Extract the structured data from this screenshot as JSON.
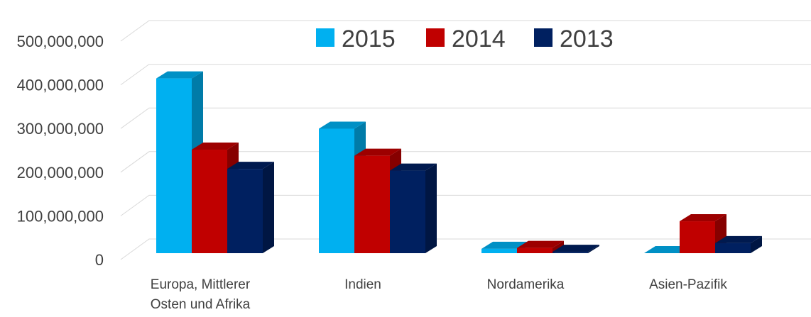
{
  "chart_data": {
    "type": "bar",
    "categories": [
      [
        "Europa, Mittlerer",
        "Osten und Afrika"
      ],
      [
        "Indien"
      ],
      [
        "Nordamerika"
      ],
      [
        "Asien-Pazifik"
      ]
    ],
    "series": [
      {
        "name": "2015",
        "color": "#00B0F0",
        "values": [
          400000000,
          285000000,
          10000000,
          0
        ]
      },
      {
        "name": "2014",
        "color": "#C00000",
        "values": [
          237000000,
          223000000,
          12000000,
          73000000
        ]
      },
      {
        "name": "2013",
        "color": "#002060",
        "values": [
          193000000,
          189000000,
          3000000,
          23000000
        ]
      }
    ],
    "y_ticks": [
      "0",
      "100,000,000",
      "200,000,000",
      "300,000,000",
      "400,000,000",
      "500,000,000"
    ],
    "ylim": [
      0,
      500000000
    ],
    "grid": true,
    "legend_position": "top"
  }
}
